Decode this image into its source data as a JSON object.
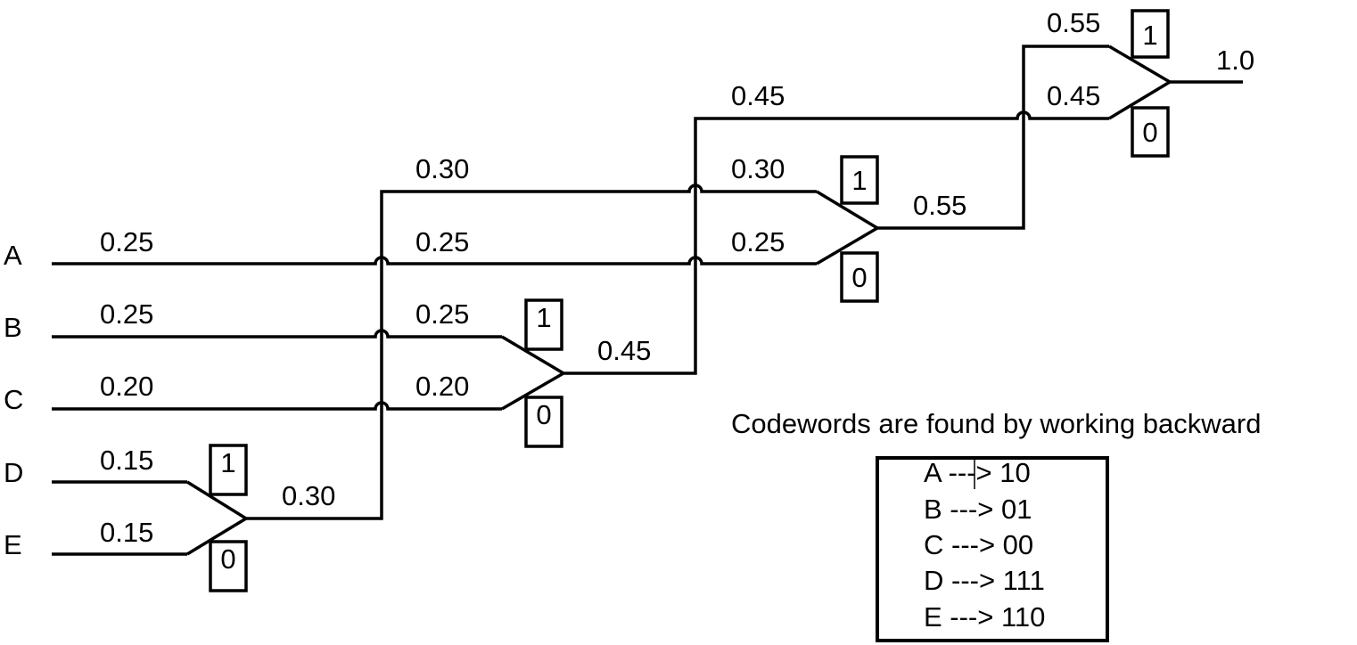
{
  "symbols": [
    "A",
    "B",
    "C",
    "D",
    "E"
  ],
  "input_probabilities": [
    "0.25",
    "0.25",
    "0.20",
    "0.15",
    "0.15"
  ],
  "merge_de": {
    "in_top": "0.15",
    "in_bottom": "0.15",
    "out": "0.30",
    "bit_top": "1",
    "bit_bottom": "0"
  },
  "stage2_labels": [
    "0.30",
    "0.25",
    "0.25",
    "0.20"
  ],
  "merge_bc": {
    "out": "0.45",
    "bit_top": "1",
    "bit_bottom": "0"
  },
  "stage3_labels": [
    "0.45",
    "0.30",
    "0.25"
  ],
  "merge_a_de": {
    "out": "0.55",
    "bit_top": "1",
    "bit_bottom": "0"
  },
  "final_merge": {
    "in_top": "0.55",
    "in_bottom": "0.45",
    "out": "1.0",
    "bit_top": "1",
    "bit_bottom": "0"
  },
  "codewords": {
    "heading": "Codewords are found by working backward",
    "entries": [
      "A --‍-> 10",
      "B ---> 01",
      "C ---> 00",
      "D ---> 111",
      "E ---> 110"
    ]
  }
}
